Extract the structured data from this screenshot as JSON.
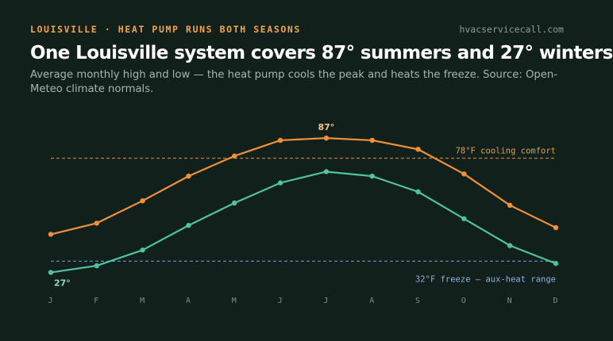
{
  "header": {
    "kicker": "LOUISVILLE · HEAT PUMP RUNS BOTH SEASONS",
    "site": "hvacservicecall.com",
    "title": "One Louisville system covers 87° summers and 27° winters",
    "subtitle": "Average monthly high and low — the heat pump cools the peak and heats the freeze. Source: Open-Meteo climate normals."
  },
  "colors": {
    "background": "#12201c",
    "high": "#f0913a",
    "low": "#4fc39a",
    "cooling_ref": "#c07a3a",
    "freeze_ref": "#5f86b5"
  },
  "chart_data": {
    "type": "line",
    "categories": [
      "J",
      "F",
      "M",
      "A",
      "M",
      "J",
      "J",
      "A",
      "S",
      "O",
      "N",
      "D"
    ],
    "series": [
      {
        "values": [
          44,
          49,
          59,
          70,
          79,
          86,
          87,
          86,
          82,
          71,
          57,
          47
        ]
      },
      {
        "values": [
          27,
          30,
          37,
          48,
          58,
          67,
          72,
          70,
          63,
          51,
          39,
          31
        ]
      }
    ],
    "ylim": [
      24,
      92
    ],
    "reference_lines": [
      {
        "value": 78,
        "label": "78°F cooling comfort"
      },
      {
        "value": 32,
        "label": "32°F freeze — aux-heat range"
      }
    ],
    "annotations": [
      {
        "series": 0,
        "index": 6,
        "text": "87°"
      },
      {
        "series": 1,
        "index": 0,
        "text": "27°"
      }
    ],
    "grid": false,
    "legend": "none"
  }
}
